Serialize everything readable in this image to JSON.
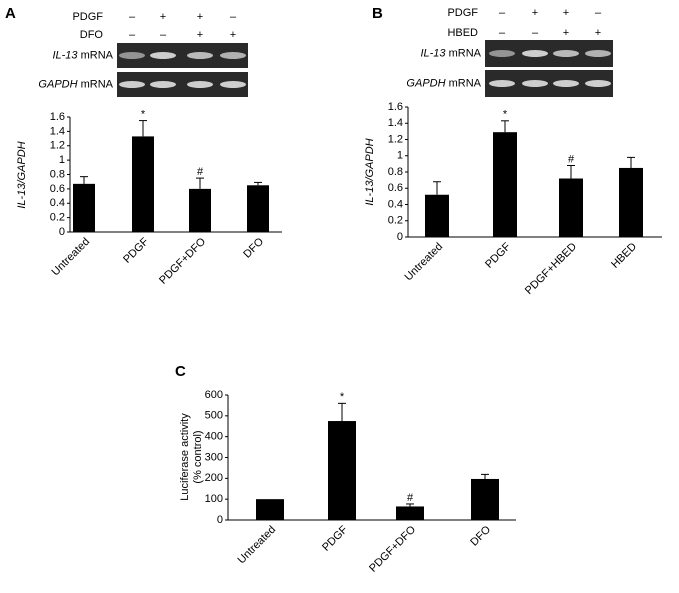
{
  "chart_data": [
    {
      "type": "bar",
      "panel": "A",
      "treatments": [
        {
          "name": "PDGF",
          "signs": [
            "–",
            "+",
            "+",
            "–"
          ]
        },
        {
          "name": "DFO",
          "signs": [
            "–",
            "–",
            "+",
            "+"
          ]
        }
      ],
      "blots": [
        {
          "gene": "IL-13",
          "label": "mRNA"
        },
        {
          "gene": "GAPDH",
          "label": "mRNA"
        }
      ],
      "ylabel": "IL-13/GAPDH",
      "categories": [
        "Untreated",
        "PDGF",
        "PDGF+DFO",
        "DFO"
      ],
      "values": [
        0.67,
        1.33,
        0.6,
        0.65
      ],
      "errors": [
        0.1,
        0.22,
        0.15,
        0.04
      ],
      "annotations": [
        null,
        "*",
        "#",
        null
      ],
      "color": "#000000",
      "ylim": [
        0,
        1.6
      ],
      "yticks": [
        0,
        0.2,
        0.4,
        0.6,
        0.8,
        1,
        1.2,
        1.4,
        1.6
      ]
    },
    {
      "type": "bar",
      "panel": "B",
      "treatments": [
        {
          "name": "PDGF",
          "signs": [
            "–",
            "+",
            "+",
            "–"
          ]
        },
        {
          "name": "HBED",
          "signs": [
            "–",
            "–",
            "+",
            "+"
          ]
        }
      ],
      "blots": [
        {
          "gene": "IL-13",
          "label": "mRNA"
        },
        {
          "gene": "GAPDH",
          "label": "mRNA"
        }
      ],
      "ylabel": "IL-13/GAPDH",
      "categories": [
        "Untreated",
        "PDGF",
        "PDGF+HBED",
        "HBED"
      ],
      "values": [
        0.52,
        1.29,
        0.72,
        0.85
      ],
      "errors": [
        0.16,
        0.14,
        0.16,
        0.13
      ],
      "annotations": [
        null,
        "*",
        "#",
        null
      ],
      "color": "#000000",
      "ylim": [
        0,
        1.6
      ],
      "yticks": [
        0,
        0.2,
        0.4,
        0.6,
        0.8,
        1,
        1.2,
        1.4,
        1.6
      ]
    },
    {
      "type": "bar",
      "panel": "C",
      "ylabel": [
        "Luciferase activity",
        "(% control)"
      ],
      "categories": [
        "Untreated",
        "PDGF",
        "PDGF+DFO",
        "DFO"
      ],
      "values": [
        100,
        475,
        65,
        197
      ],
      "errors": [
        0,
        85,
        12,
        22
      ],
      "annotations": [
        null,
        "*",
        "#",
        null
      ],
      "color": "#000000",
      "ylim": [
        0,
        600
      ],
      "yticks": [
        0,
        100,
        200,
        300,
        400,
        500,
        600
      ]
    }
  ]
}
